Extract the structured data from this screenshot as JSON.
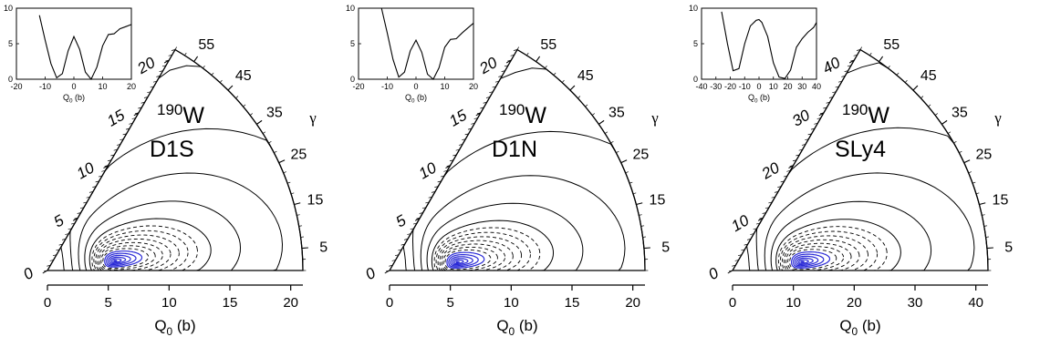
{
  "chart_data": [
    {
      "type": "contour",
      "nucleus_mass": "190",
      "nucleus_symbol": "W",
      "interaction": "D1S",
      "xlabel_main": "Q",
      "xlabel_sub": "0",
      "xlabel_unit": " (b)",
      "qmax": 21,
      "xlim": [
        0,
        21
      ],
      "xticks": [
        0,
        5,
        10,
        15,
        20
      ],
      "yticks": [
        0,
        5,
        10,
        15,
        20
      ],
      "gamma_label": "γ",
      "gamma_range": [
        0,
        60
      ],
      "gamma_ticks": [
        5,
        15,
        25,
        35,
        45,
        55
      ],
      "minimum": {
        "q0": 5.6,
        "gamma": 8
      },
      "contour_colors": {
        "inner": "#2b2bd6",
        "dashed": "#000000",
        "outer": "#000000"
      },
      "inset": {
        "xlabel_main": "Q",
        "xlabel_sub": "0",
        "xlabel_unit": " (b)",
        "xlim": [
          -20,
          20
        ],
        "ylim": [
          0,
          10
        ],
        "xticks": [
          -20,
          -10,
          0,
          10,
          20
        ],
        "yticks": [
          0,
          5,
          10
        ],
        "x": [
          -12,
          -10,
          -8,
          -6,
          -4,
          -2,
          0,
          2,
          4,
          6,
          8,
          10,
          12,
          14,
          16,
          18,
          20
        ],
        "y": [
          9,
          5.5,
          2.2,
          0.2,
          0.8,
          4,
          6,
          4.2,
          1,
          0,
          1.7,
          4.7,
          6.3,
          6.4,
          7.1,
          7.4,
          7.7
        ]
      }
    },
    {
      "type": "contour",
      "nucleus_mass": "190",
      "nucleus_symbol": "W",
      "interaction": "D1N",
      "xlabel_main": "Q",
      "xlabel_sub": "0",
      "xlabel_unit": " (b)",
      "qmax": 21,
      "xlim": [
        0,
        21
      ],
      "xticks": [
        0,
        5,
        10,
        15,
        20
      ],
      "yticks": [
        0,
        5,
        10,
        15,
        20
      ],
      "gamma_label": "γ",
      "gamma_range": [
        0,
        60
      ],
      "gamma_ticks": [
        5,
        15,
        25,
        35,
        45,
        55
      ],
      "minimum": {
        "q0": 5.6,
        "gamma": 7
      },
      "contour_colors": {
        "inner": "#2b2bd6",
        "dashed": "#000000",
        "outer": "#000000"
      },
      "inset": {
        "xlabel_main": "Q",
        "xlabel_sub": "0",
        "xlabel_unit": " (b)",
        "xlim": [
          -20,
          20
        ],
        "ylim": [
          0,
          10
        ],
        "xticks": [
          -20,
          -10,
          0,
          10,
          20
        ],
        "yticks": [
          0,
          5,
          10
        ],
        "x": [
          -12,
          -10,
          -8,
          -6,
          -4,
          -2,
          0,
          2,
          4,
          6,
          8,
          10,
          12,
          14,
          16,
          18,
          20
        ],
        "y": [
          10,
          6.5,
          2.8,
          0.3,
          1,
          4,
          5.5,
          3.8,
          0.7,
          0,
          1.6,
          4.5,
          5.6,
          5.7,
          6.5,
          7.2,
          7.9
        ]
      }
    },
    {
      "type": "contour",
      "nucleus_mass": "190",
      "nucleus_symbol": "W",
      "interaction": "SLy4",
      "xlabel_main": "Q",
      "xlabel_sub": "0",
      "xlabel_unit": " (b)",
      "qmax": 42,
      "xlim": [
        0,
        42
      ],
      "xticks": [
        0,
        10,
        20,
        30,
        40
      ],
      "yticks": [
        0,
        10,
        20,
        30,
        40
      ],
      "gamma_label": "γ",
      "gamma_range": [
        0,
        60
      ],
      "gamma_ticks": [
        5,
        15,
        25,
        35,
        45,
        55
      ],
      "minimum": {
        "q0": 11.5,
        "gamma": 7
      },
      "contour_colors": {
        "inner": "#2b2bd6",
        "dashed": "#000000",
        "outer": "#000000"
      },
      "inset": {
        "xlabel_main": "Q",
        "xlabel_sub": "0",
        "xlabel_unit": " (b)",
        "xlim": [
          -40,
          40
        ],
        "ylim": [
          0,
          10
        ],
        "xticks": [
          -40,
          -30,
          -20,
          -10,
          0,
          10,
          20,
          30,
          40
        ],
        "yticks": [
          0,
          5,
          10
        ],
        "x": [
          -26,
          -22,
          -18,
          -14,
          -10,
          -6,
          -2,
          0,
          2,
          6,
          10,
          14,
          18,
          22,
          26,
          30,
          34,
          38,
          40
        ],
        "y": [
          9.5,
          5,
          1.2,
          1.5,
          5,
          7.5,
          8.3,
          8.4,
          8,
          6,
          2.3,
          0.3,
          0.1,
          1.3,
          4.5,
          5.7,
          6.6,
          7.3,
          8
        ]
      }
    }
  ]
}
